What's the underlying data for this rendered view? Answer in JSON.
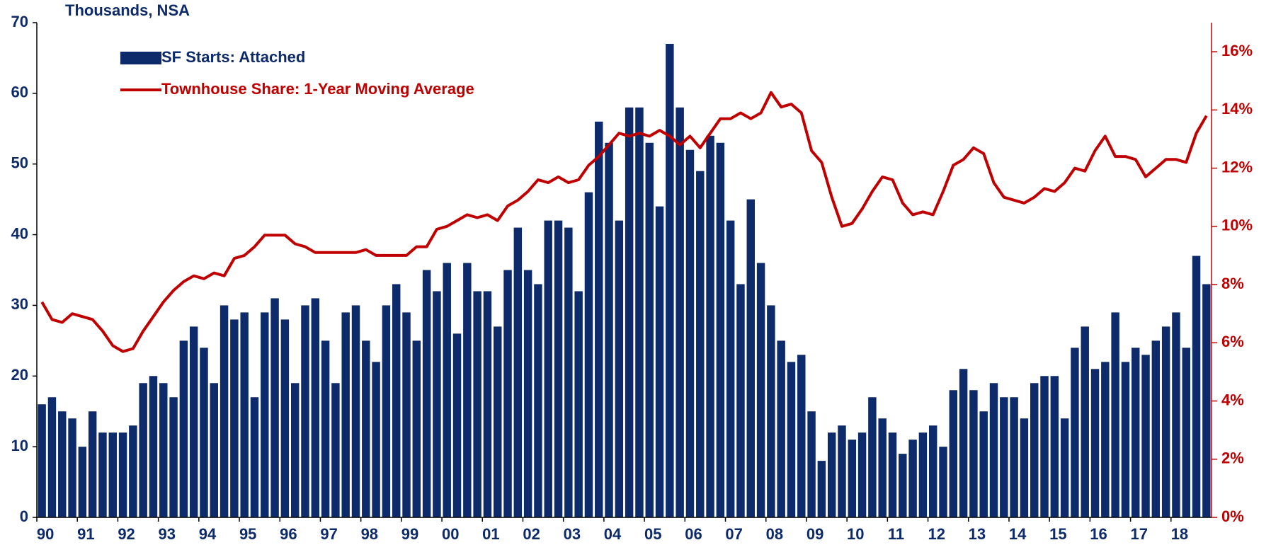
{
  "chart_data": {
    "type": "bar",
    "y_label": "Thousands, NSA",
    "categories": [
      "90",
      null,
      null,
      null,
      "91",
      null,
      null,
      null,
      "92",
      null,
      null,
      null,
      "93",
      null,
      null,
      null,
      "94",
      null,
      null,
      null,
      "95",
      null,
      null,
      null,
      "96",
      null,
      null,
      null,
      "97",
      null,
      null,
      null,
      "98",
      null,
      null,
      null,
      "99",
      null,
      null,
      null,
      "00",
      null,
      null,
      null,
      "01",
      null,
      null,
      null,
      "02",
      null,
      null,
      null,
      "03",
      null,
      null,
      null,
      "04",
      null,
      null,
      null,
      "05",
      null,
      null,
      null,
      "06",
      null,
      null,
      null,
      "07",
      null,
      null,
      null,
      "08",
      null,
      null,
      null,
      "09",
      null,
      null,
      null,
      "10",
      null,
      null,
      null,
      "11",
      null,
      null,
      null,
      "12",
      null,
      null,
      null,
      "13",
      null,
      null,
      null,
      "14",
      null,
      null,
      null,
      "15",
      null,
      null,
      null,
      "16",
      null,
      null,
      null,
      "17",
      null,
      null,
      null,
      "18",
      null,
      null,
      null
    ],
    "series": [
      {
        "name": "SF Starts: Attached",
        "color": "#0d2a6b",
        "type": "bar",
        "values": [
          16,
          17,
          15,
          14,
          10,
          15,
          12,
          12,
          12,
          13,
          19,
          20,
          19,
          17,
          25,
          27,
          24,
          19,
          30,
          28,
          29,
          17,
          29,
          31,
          28,
          19,
          30,
          31,
          25,
          19,
          29,
          30,
          25,
          22,
          30,
          33,
          29,
          25,
          35,
          32,
          36,
          26,
          36,
          32,
          32,
          27,
          35,
          41,
          35,
          33,
          42,
          42,
          41,
          32,
          46,
          56,
          53,
          42,
          58,
          58,
          53,
          44,
          67,
          58,
          52,
          49,
          54,
          53,
          42,
          33,
          45,
          36,
          30,
          25,
          22,
          23,
          15,
          8,
          12,
          13,
          11,
          12,
          17,
          14,
          12,
          9,
          11,
          12,
          13,
          10,
          18,
          21,
          18,
          15,
          19,
          17,
          17,
          14,
          19,
          20,
          20,
          14,
          24,
          27,
          21,
          22,
          29,
          22,
          24,
          23,
          25,
          27,
          29,
          24,
          37,
          33
        ]
      },
      {
        "name": "Townhouse Share: 1-Year Moving Average",
        "color": "#c00000",
        "type": "line",
        "axis": "y2",
        "values": [
          7.4,
          6.8,
          6.7,
          7.0,
          6.9,
          6.8,
          6.4,
          5.9,
          5.7,
          5.8,
          6.4,
          6.9,
          7.4,
          7.8,
          8.1,
          8.3,
          8.2,
          8.4,
          8.3,
          8.9,
          9.0,
          9.3,
          9.7,
          9.7,
          9.7,
          9.4,
          9.3,
          9.1,
          9.1,
          9.1,
          9.1,
          9.1,
          9.2,
          9.0,
          9.0,
          9.0,
          9.0,
          9.3,
          9.3,
          9.9,
          10.0,
          10.2,
          10.4,
          10.3,
          10.4,
          10.2,
          10.7,
          10.9,
          11.2,
          11.6,
          11.5,
          11.7,
          11.5,
          11.6,
          12.1,
          12.4,
          12.8,
          13.2,
          13.1,
          13.2,
          13.1,
          13.3,
          13.1,
          12.8,
          13.1,
          12.7,
          13.2,
          13.7,
          13.7,
          13.9,
          13.7,
          13.9,
          14.6,
          14.1,
          14.2,
          13.9,
          12.6,
          12.2,
          11.0,
          10.0,
          10.1,
          10.6,
          11.2,
          11.7,
          11.6,
          10.8,
          10.4,
          10.5,
          10.4,
          11.2,
          12.1,
          12.3,
          12.7,
          12.5,
          11.5,
          11.0,
          10.9,
          10.8,
          11.0,
          11.3,
          11.2,
          11.5,
          12.0,
          11.9,
          12.6,
          13.1,
          12.4,
          12.4,
          12.3,
          11.7,
          12.0,
          12.3,
          12.3,
          12.2,
          13.2,
          13.8
        ]
      }
    ],
    "ylim": [
      0,
      70
    ],
    "yticks": [
      0,
      10,
      20,
      30,
      40,
      50,
      60,
      70
    ],
    "y2lim": [
      0,
      17
    ],
    "y2ticks": [
      {
        "value": 0,
        "label": "0%"
      },
      {
        "value": 2,
        "label": "2%"
      },
      {
        "value": 4,
        "label": "4%"
      },
      {
        "value": 6,
        "label": "6%"
      },
      {
        "value": 8,
        "label": "8%"
      },
      {
        "value": 10,
        "label": "10%"
      },
      {
        "value": 12,
        "label": "12%"
      },
      {
        "value": 14,
        "label": "14%"
      },
      {
        "value": 16,
        "label": "16%"
      }
    ],
    "grid": false,
    "legend": "top-left"
  }
}
